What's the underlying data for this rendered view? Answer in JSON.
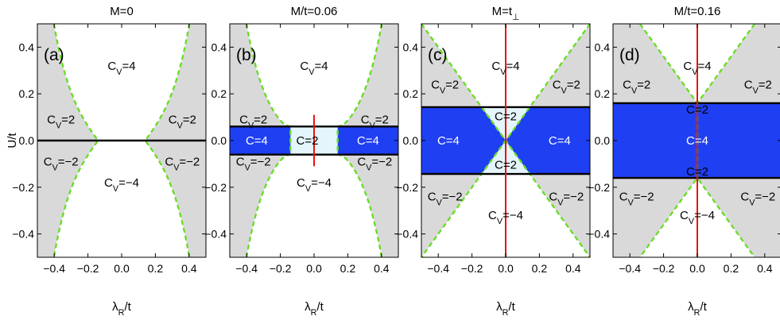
{
  "figure": {
    "ylabel": "U/t",
    "xlabel": "λ_R/t",
    "xlim": [
      -0.5,
      0.5
    ],
    "ylim": [
      -0.5,
      0.5
    ],
    "x_ticks": [
      -0.4,
      -0.2,
      0.0,
      0.2,
      0.4
    ],
    "x_tick_labels": [
      "−0.4",
      "−0.2",
      "0.0",
      "0.2",
      "0.4"
    ],
    "y_ticks": [
      0.4,
      0.2,
      0.0,
      -0.2,
      -0.4
    ],
    "y_tick_labels": [
      "0.4",
      "0.2",
      "0.0",
      "−0.2",
      "−0.4"
    ],
    "colors": {
      "gray_region": "#d9d9d9",
      "blue_region": "#1f3ff2",
      "lightblue_region": "#e4f6fb",
      "boundary_dashed": "#66dd22",
      "black_line": "#000000",
      "red_line": "#ee1111"
    }
  },
  "chart_data": [
    {
      "type": "phase-diagram",
      "panel_label": "(a)",
      "title": "M=0",
      "boundary": "U = ±sinh(8·(|λ_R| − 0.14))/8",
      "black_lines_U": [
        0.0
      ],
      "red_line": null,
      "region_labels": [
        {
          "text": "C_V=4",
          "lambda": 0.0,
          "U": 0.32
        },
        {
          "text": "C_V=2",
          "lambda": -0.36,
          "U": 0.09
        },
        {
          "text": "C_V=2",
          "lambda": 0.36,
          "U": 0.09
        },
        {
          "text": "C_V=−2",
          "lambda": -0.36,
          "U": -0.09
        },
        {
          "text": "C_V=−2",
          "lambda": 0.36,
          "U": -0.09
        },
        {
          "text": "C_V=−4",
          "lambda": 0.0,
          "U": -0.18
        }
      ]
    },
    {
      "type": "phase-diagram",
      "panel_label": "(b)",
      "title": "M/t=0.06",
      "boundary": "U = ±sqrt(M² + (sinh(8·(|λ_R| − 0.14))/8)²)",
      "black_lines_U": [
        0.06,
        -0.06
      ],
      "blue_band": [
        -0.06,
        0.06
      ],
      "red_line": {
        "lambda": 0.0,
        "U_range": [
          -0.11,
          0.11
        ]
      },
      "region_labels": [
        {
          "text": "C_V=4",
          "lambda": 0.0,
          "U": 0.32
        },
        {
          "text": "C_V=2",
          "lambda": -0.36,
          "U": 0.09
        },
        {
          "text": "C_V=2",
          "lambda": 0.36,
          "U": 0.09
        },
        {
          "text": "C=4",
          "lambda": -0.34,
          "U": 0.0
        },
        {
          "text": "C=2",
          "lambda": -0.04,
          "U": 0.0
        },
        {
          "text": "C=4",
          "lambda": 0.32,
          "U": 0.0
        },
        {
          "text": "C_V=−2",
          "lambda": -0.36,
          "U": -0.09
        },
        {
          "text": "C_V=−2",
          "lambda": 0.36,
          "U": -0.09
        },
        {
          "text": "C_V=−4",
          "lambda": 0.0,
          "U": -0.18
        }
      ]
    },
    {
      "type": "phase-diagram",
      "panel_label": "(c)",
      "title": "M=t_⊥",
      "boundary": "U = ±(M + |λ_R|)",
      "black_lines_U": [
        0.143,
        -0.143
      ],
      "blue_band": [
        -0.143,
        0.143
      ],
      "red_line": {
        "lambda": 0.0,
        "U_range": [
          -0.5,
          0.5
        ]
      },
      "region_labels": [
        {
          "text": "C_V=4",
          "lambda": 0.0,
          "U": 0.32
        },
        {
          "text": "C_V=2",
          "lambda": -0.36,
          "U": 0.24
        },
        {
          "text": "C_V=2",
          "lambda": 0.36,
          "U": 0.24
        },
        {
          "text": "C=2",
          "lambda": 0.0,
          "U": 0.103
        },
        {
          "text": "C=4",
          "lambda": -0.34,
          "U": 0.0
        },
        {
          "text": "C=4",
          "lambda": 0.32,
          "U": 0.0
        },
        {
          "text": "C=2",
          "lambda": 0.0,
          "U": -0.103
        },
        {
          "text": "C_V=−2",
          "lambda": -0.36,
          "U": -0.24
        },
        {
          "text": "C_V=−2",
          "lambda": 0.36,
          "U": -0.24
        },
        {
          "text": "C_V=−4",
          "lambda": 0.0,
          "U": -0.32
        }
      ]
    },
    {
      "type": "phase-diagram",
      "panel_label": "(d)",
      "title": "M/t=0.16",
      "boundary": "U = ±(M + |λ_R|)",
      "black_lines_U": [
        0.16,
        -0.16
      ],
      "blue_band": [
        -0.16,
        0.16
      ],
      "red_line": {
        "lambda": 0.0,
        "U_range": [
          -0.5,
          0.5
        ]
      },
      "region_labels": [
        {
          "text": "C_V=4",
          "lambda": 0.0,
          "U": 0.32
        },
        {
          "text": "C_V=2",
          "lambda": -0.36,
          "U": 0.24
        },
        {
          "text": "C_V=2",
          "lambda": 0.36,
          "U": 0.24
        },
        {
          "text": "C=2",
          "lambda": 0.0,
          "U": 0.132
        },
        {
          "text": "C=4",
          "lambda": 0.0,
          "U": 0.0
        },
        {
          "text": "C=2",
          "lambda": 0.0,
          "U": -0.132
        },
        {
          "text": "C_V=−2",
          "lambda": -0.36,
          "U": -0.24
        },
        {
          "text": "C_V=−2",
          "lambda": 0.36,
          "U": -0.24
        },
        {
          "text": "C_V=−4",
          "lambda": 0.0,
          "U": -0.32
        }
      ]
    }
  ]
}
